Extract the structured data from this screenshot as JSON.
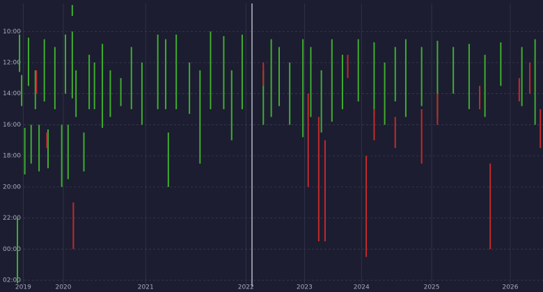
{
  "chart_data": {
    "type": "range",
    "xlim": [
      0,
      1000
    ],
    "ylim": [
      8.2,
      26.4
    ],
    "y_reversed": true,
    "grid": true,
    "xticks": [
      {
        "value": 15,
        "label": "2019"
      },
      {
        "value": 91,
        "label": "2020"
      },
      {
        "value": 247,
        "label": "2021"
      },
      {
        "value": 437,
        "label": "2022"
      },
      {
        "value": 548,
        "label": "2023"
      },
      {
        "value": 656,
        "label": "2024"
      },
      {
        "value": 789,
        "label": "2025"
      },
      {
        "value": 938,
        "label": "2026"
      }
    ],
    "yticks": [
      {
        "value": 10,
        "label": "10:00"
      },
      {
        "value": 12,
        "label": "12:00"
      },
      {
        "value": 14,
        "label": "14:00"
      },
      {
        "value": 16,
        "label": "16:00"
      },
      {
        "value": 18,
        "label": "18:00"
      },
      {
        "value": 20,
        "label": "20:00"
      },
      {
        "value": 22,
        "label": "22:00"
      },
      {
        "value": 24,
        "label": "00:00"
      },
      {
        "value": 26,
        "label": "02:00"
      }
    ],
    "series": [
      {
        "color": "#3fae2f",
        "x": [
          4,
          8,
          12,
          18,
          25,
          30,
          38,
          45,
          55,
          62,
          75,
          88,
          95,
          100,
          108,
          108,
          115,
          130,
          140,
          150,
          165,
          180,
          200,
          220,
          240,
          270,
          285,
          290,
          305,
          330,
          350,
          370,
          395,
          410,
          430,
          470,
          485,
          500,
          520,
          545,
          560,
          580,
          600,
          620,
          650,
          680,
          700,
          720,
          740,
          770,
          800,
          830,
          860,
          890,
          920,
          960,
          985
        ],
        "start": [
          22,
          10.2,
          12.8,
          16.2,
          10.4,
          16,
          12.5,
          16,
          10.5,
          16.3,
          11,
          16,
          10.2,
          16,
          10,
          8.3,
          12.5,
          16.5,
          11.5,
          12,
          10.8,
          12.5,
          13,
          11,
          12,
          10.2,
          10.5,
          16.5,
          10.2,
          12,
          12.5,
          10,
          10.3,
          12.5,
          10.2,
          12.5,
          10.5,
          11,
          12,
          10.5,
          11,
          12.5,
          10.5,
          11.5,
          10.5,
          10.7,
          12,
          11,
          10.5,
          11,
          10.6,
          11,
          10.8,
          11.5,
          10.7,
          11,
          10.5
        ],
        "end": [
          26.2,
          12.6,
          14.8,
          19.2,
          13.5,
          18.5,
          15,
          19,
          14.5,
          18.8,
          15,
          20,
          14,
          19.5,
          14.3,
          9,
          15.5,
          19,
          15,
          15,
          16.2,
          15.5,
          14.8,
          15,
          16,
          15,
          15,
          20,
          15,
          15.3,
          18.5,
          15,
          15,
          17,
          15,
          16,
          15.5,
          14.8,
          16,
          16.8,
          15.5,
          16.5,
          15.8,
          15,
          14.5,
          15.5,
          16,
          14.5,
          15.5,
          14.8,
          15.5,
          14,
          15,
          15.5,
          13.5,
          14.8,
          16
        ]
      },
      {
        "color": "#c42a2a",
        "x": [
          40,
          60,
          110,
          470,
          555,
          575,
          587,
          630,
          665,
          680,
          720,
          770,
          800,
          880,
          900,
          955,
          975,
          995
        ],
        "start": [
          12.5,
          16.5,
          21,
          12,
          14,
          15.5,
          17,
          11.5,
          18,
          15,
          15.5,
          15,
          14,
          13.5,
          18.5,
          13,
          12,
          15
        ],
        "end": [
          14,
          17.5,
          24,
          13.5,
          20,
          23.5,
          23.5,
          13,
          24.5,
          17,
          17.5,
          18.5,
          16,
          15,
          24,
          14.5,
          14,
          17.5
        ]
      }
    ]
  }
}
